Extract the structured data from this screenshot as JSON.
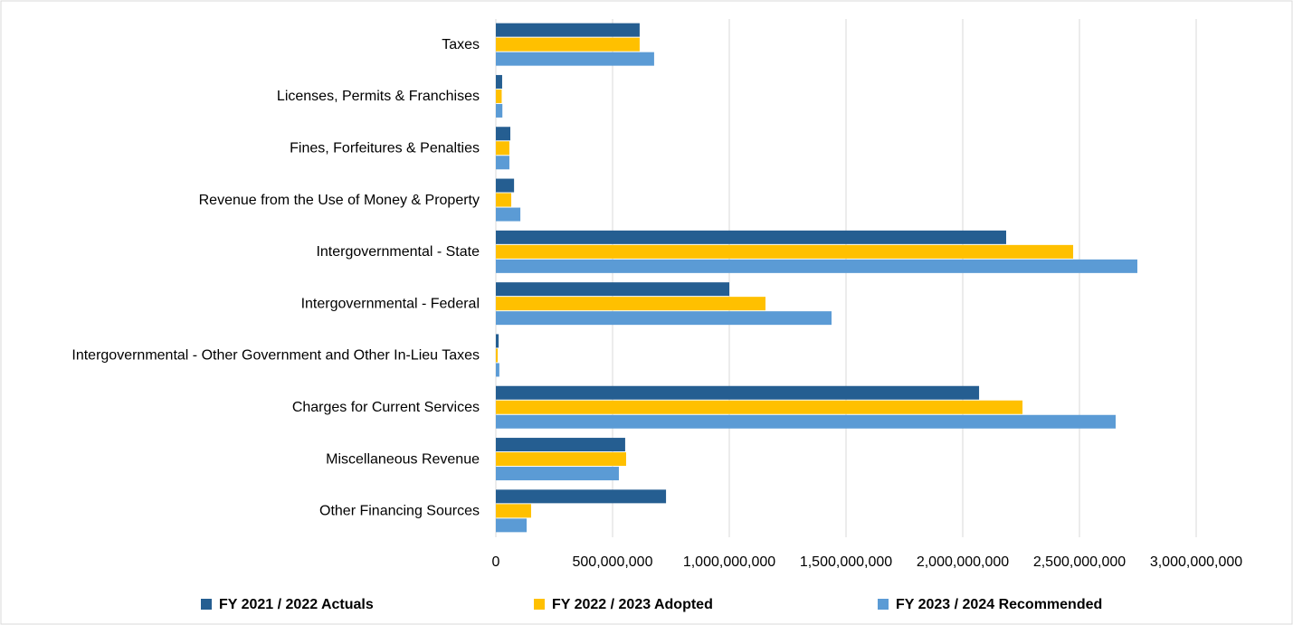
{
  "chart_data": {
    "type": "bar",
    "orientation": "horizontal",
    "categories": [
      "Taxes",
      "Licenses, Permits & Franchises",
      "Fines, Forfeitures & Penalties",
      "Revenue from the Use of Money & Property",
      "Intergovernmental - State",
      "Intergovernmental - Federal",
      "Intergovernmental - Other Government and Other In-Lieu Taxes",
      "Charges for Current Services",
      "Miscellaneous Revenue",
      "Other Financing Sources"
    ],
    "series": [
      {
        "name": "FY 2021 / 2022 Actuals",
        "color": "#255e91",
        "values": [
          616000000,
          27000000,
          62000000,
          78000000,
          2186000000,
          1000000000,
          12000000,
          2070000000,
          554000000,
          729000000
        ]
      },
      {
        "name": "FY 2022 / 2023 Adopted",
        "color": "#ffc000",
        "values": [
          616000000,
          25000000,
          58000000,
          66000000,
          2473000000,
          1155000000,
          8000000,
          2256000000,
          558000000,
          151000000
        ]
      },
      {
        "name": "FY 2023 / 2024 Recommended",
        "color": "#5b9bd5",
        "values": [
          678000000,
          28000000,
          58000000,
          105000000,
          2748000000,
          1438000000,
          15000000,
          2655000000,
          527000000,
          132000000
        ]
      }
    ],
    "xlim": [
      0,
      3000000000
    ],
    "xticks": [
      0,
      {
        "value": 500000000,
        "label": "500,000,000"
      },
      {
        "value": 1000000000,
        "label": "1,000,000,000"
      },
      {
        "value": 1500000000,
        "label": "1,500,000,000"
      },
      {
        "value": 2000000000,
        "label": "2,000,000,000"
      },
      {
        "value": 2500000000,
        "label": "2,500,000,000"
      },
      {
        "value": 3000000000,
        "label": "3,000,000,000"
      }
    ],
    "grid": true,
    "legend": "bottom"
  }
}
